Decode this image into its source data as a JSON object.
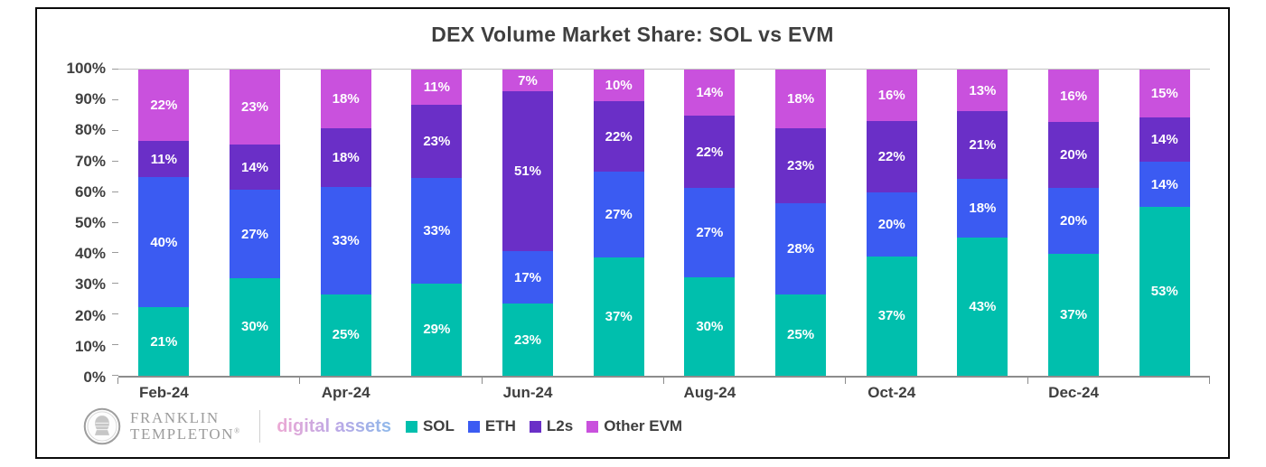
{
  "title": "DEX Volume Market Share: SOL vs EVM",
  "chart_data": {
    "type": "bar",
    "stacked": true,
    "title": "DEX Volume Market Share: SOL vs EVM",
    "x_labels": [
      "Feb-24",
      "",
      "Apr-24",
      "",
      "Jun-24",
      "",
      "Aug-24",
      "",
      "Oct-24",
      "",
      "Dec-24",
      ""
    ],
    "series": [
      {
        "name": "SOL",
        "color": "#00bfad",
        "values": [
          21,
          30,
          25,
          29,
          23,
          37,
          30,
          25,
          37,
          43,
          37,
          53
        ]
      },
      {
        "name": "ETH",
        "color": "#3b5bf2",
        "values": [
          40,
          27,
          33,
          33,
          17,
          27,
          27,
          28,
          20,
          18,
          20,
          14
        ]
      },
      {
        "name": "L2s",
        "color": "#6a2fc7",
        "values": [
          11,
          14,
          18,
          23,
          51,
          22,
          22,
          23,
          22,
          21,
          20,
          14
        ]
      },
      {
        "name": "Other EVM",
        "color": "#c951dd",
        "values": [
          22,
          23,
          18,
          11,
          7,
          10,
          14,
          18,
          16,
          13,
          16,
          15
        ]
      }
    ],
    "value_label_suffix": "%",
    "ylim": [
      0,
      100
    ],
    "yticks": [
      "100%",
      "90%",
      "80%",
      "70%",
      "60%",
      "50%",
      "40%",
      "30%",
      "20%",
      "10%",
      "0%"
    ],
    "grid": false,
    "legend_position": "bottom"
  },
  "footer": {
    "brand_line1": "FRANKLIN",
    "brand_line2": "TEMPLETON",
    "brand_registered": "®",
    "digital_assets": "digital assets",
    "legend": [
      {
        "label": "SOL",
        "color": "#00bfad"
      },
      {
        "label": "ETH",
        "color": "#3b5bf2"
      },
      {
        "label": "L2s",
        "color": "#6a2fc7"
      },
      {
        "label": "Other EVM",
        "color": "#c951dd"
      }
    ]
  }
}
